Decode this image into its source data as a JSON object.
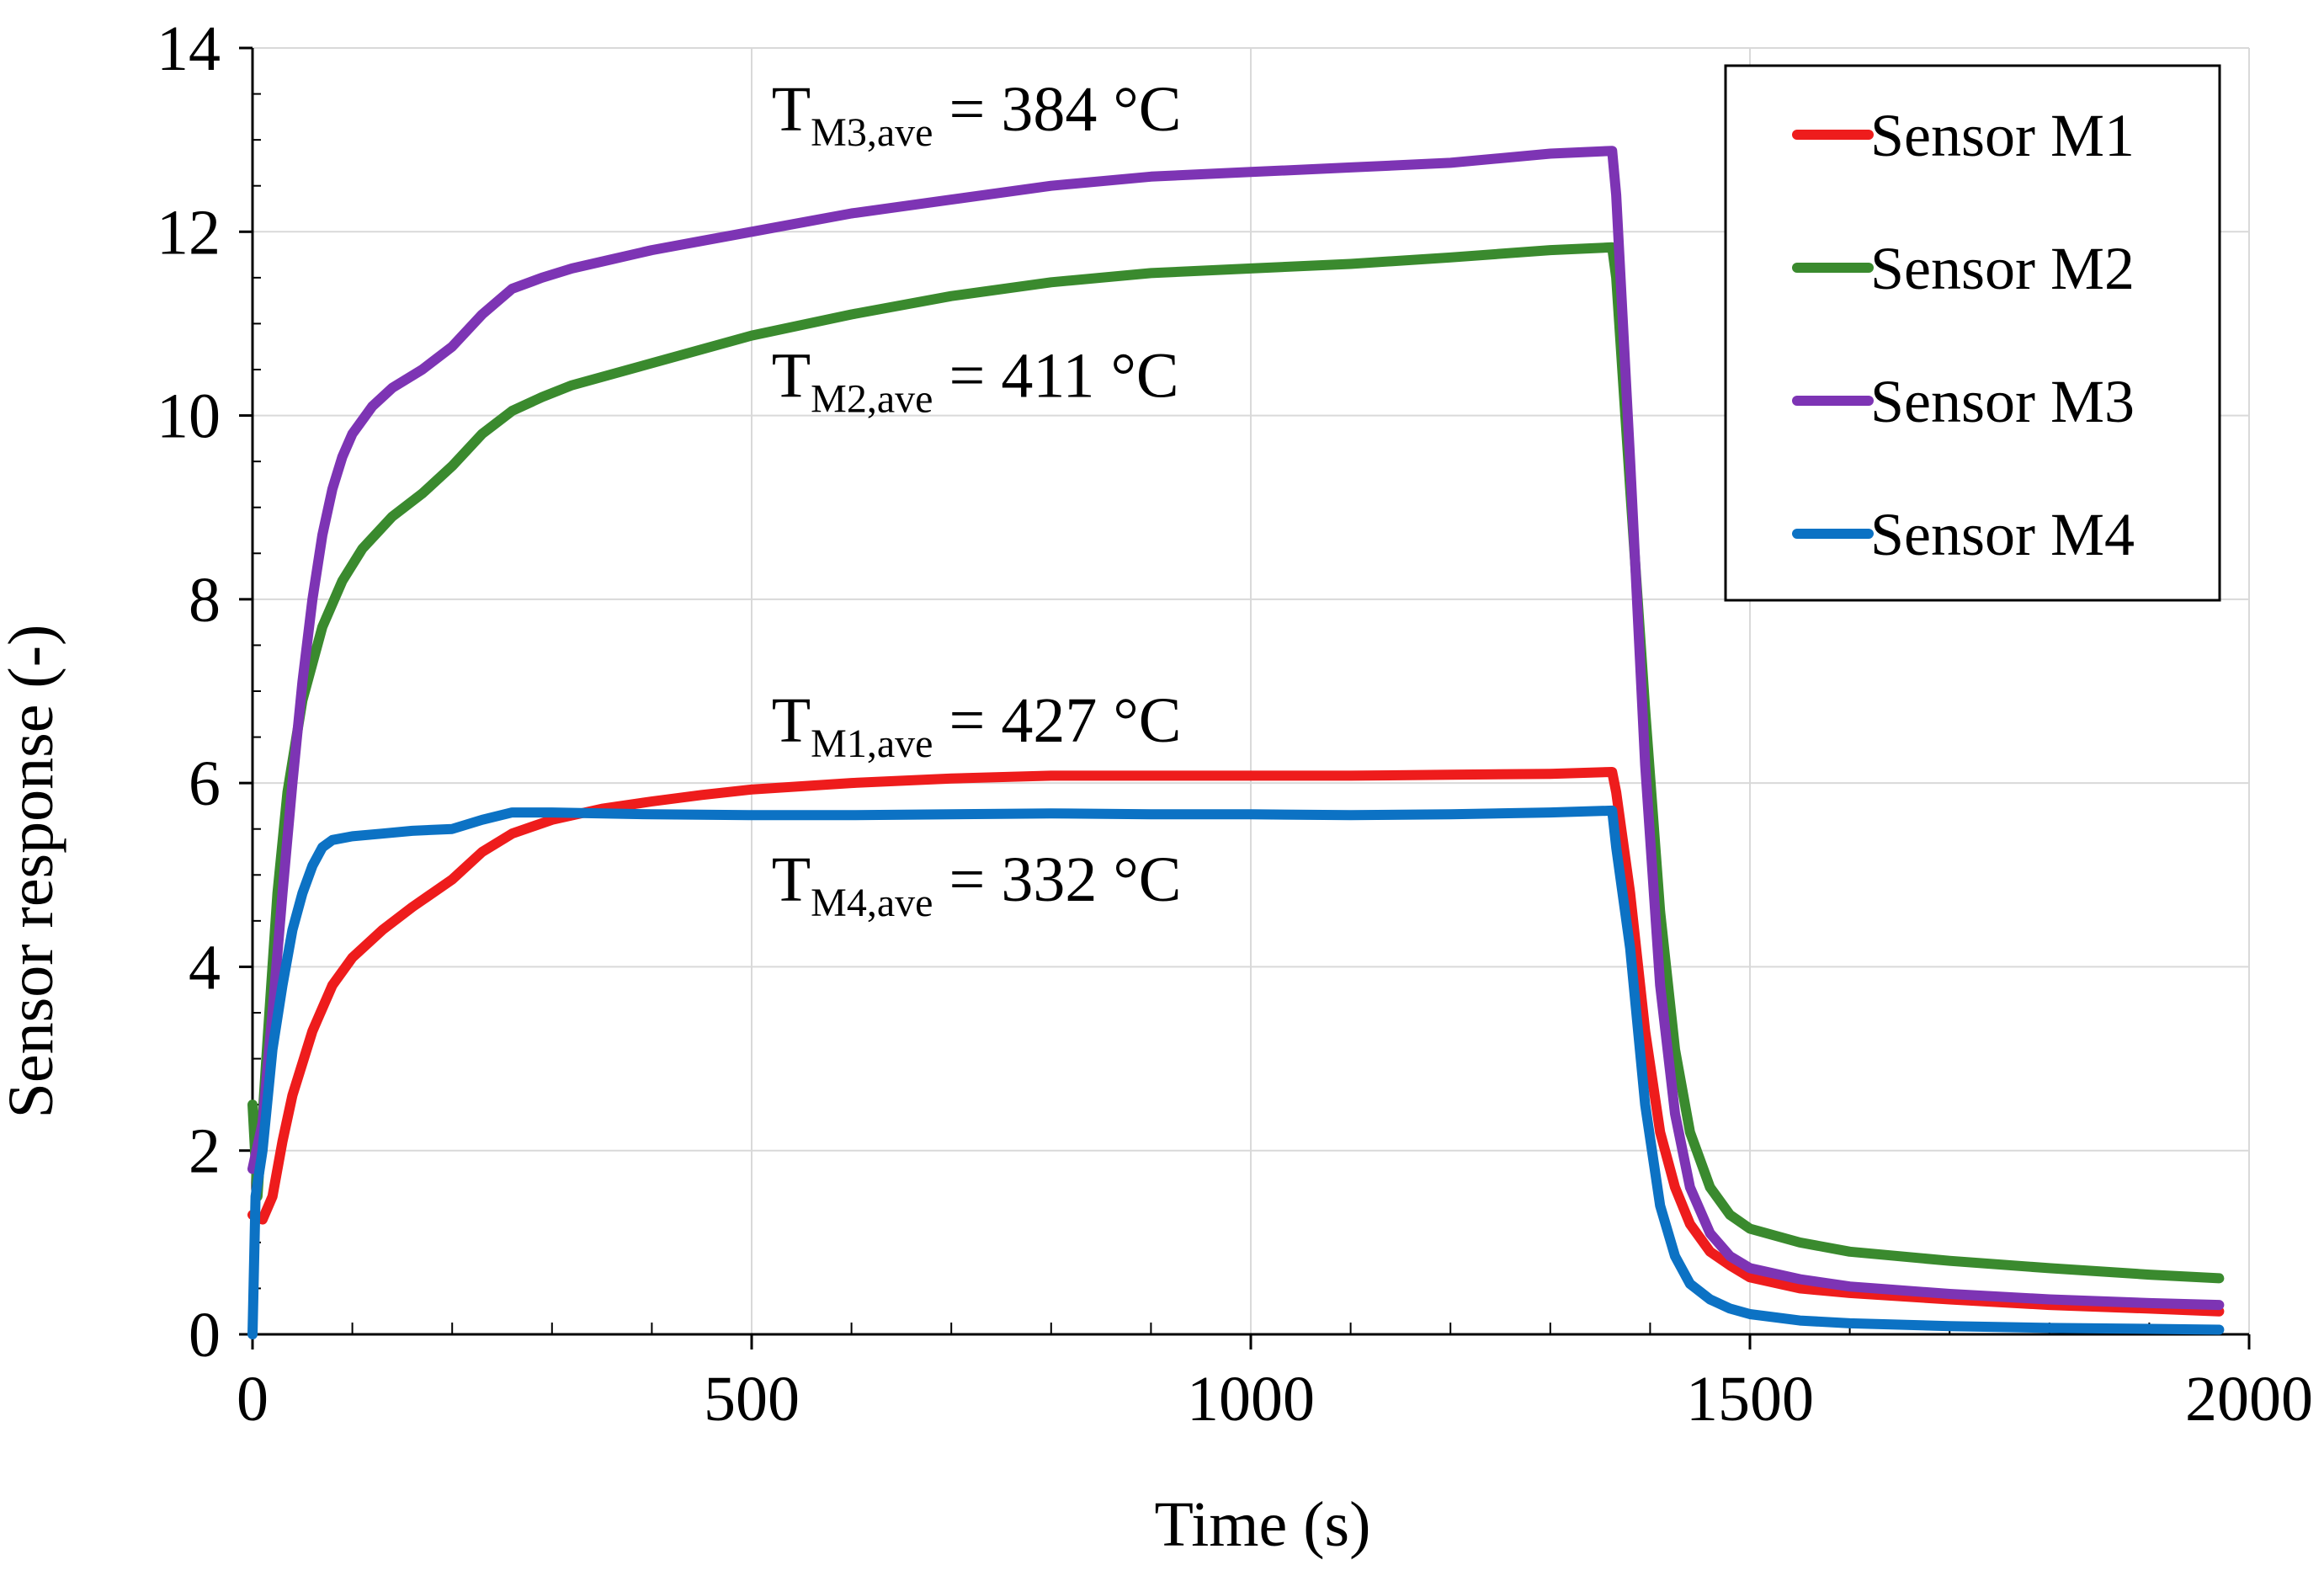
{
  "chart_data": {
    "type": "line",
    "xlabel": "Time (s)",
    "ylabel": "Sensor response (-)",
    "xlim": [
      0,
      2000
    ],
    "ylim": [
      0,
      14
    ],
    "xticks": [
      0,
      500,
      1000,
      1500,
      2000
    ],
    "yticks": [
      0,
      2,
      4,
      6,
      8,
      10,
      12,
      14
    ],
    "x_minor_step": 100,
    "grid": true,
    "legend_position": "top-right",
    "colors": {
      "Sensor M1": "#ee1c1c",
      "Sensor M2": "#3a8a2e",
      "Sensor M3": "#7d34b4",
      "Sensor M4": "#0c72c4"
    },
    "series": [
      {
        "name": "Sensor M1",
        "points": [
          [
            0,
            1.3
          ],
          [
            10,
            1.25
          ],
          [
            20,
            1.5
          ],
          [
            30,
            2.1
          ],
          [
            40,
            2.6
          ],
          [
            60,
            3.3
          ],
          [
            80,
            3.8
          ],
          [
            100,
            4.1
          ],
          [
            130,
            4.4
          ],
          [
            160,
            4.65
          ],
          [
            200,
            4.95
          ],
          [
            230,
            5.25
          ],
          [
            260,
            5.45
          ],
          [
            300,
            5.6
          ],
          [
            350,
            5.72
          ],
          [
            400,
            5.8
          ],
          [
            450,
            5.87
          ],
          [
            500,
            5.93
          ],
          [
            600,
            6.0
          ],
          [
            700,
            6.05
          ],
          [
            800,
            6.08
          ],
          [
            900,
            6.08
          ],
          [
            1000,
            6.08
          ],
          [
            1100,
            6.08
          ],
          [
            1200,
            6.09
          ],
          [
            1300,
            6.1
          ],
          [
            1362,
            6.12
          ],
          [
            1366,
            5.9
          ],
          [
            1380,
            4.8
          ],
          [
            1395,
            3.3
          ],
          [
            1410,
            2.2
          ],
          [
            1425,
            1.6
          ],
          [
            1440,
            1.2
          ],
          [
            1460,
            0.9
          ],
          [
            1480,
            0.75
          ],
          [
            1500,
            0.62
          ],
          [
            1550,
            0.5
          ],
          [
            1600,
            0.45
          ],
          [
            1700,
            0.38
          ],
          [
            1800,
            0.32
          ],
          [
            1900,
            0.28
          ],
          [
            1970,
            0.25
          ]
        ]
      },
      {
        "name": "Sensor M2",
        "points": [
          [
            0,
            2.5
          ],
          [
            5,
            1.5
          ],
          [
            15,
            3.2
          ],
          [
            25,
            4.8
          ],
          [
            35,
            5.9
          ],
          [
            50,
            6.9
          ],
          [
            70,
            7.7
          ],
          [
            90,
            8.2
          ],
          [
            110,
            8.55
          ],
          [
            140,
            8.9
          ],
          [
            170,
            9.15
          ],
          [
            200,
            9.45
          ],
          [
            230,
            9.8
          ],
          [
            260,
            10.05
          ],
          [
            290,
            10.2
          ],
          [
            320,
            10.33
          ],
          [
            360,
            10.45
          ],
          [
            400,
            10.57
          ],
          [
            450,
            10.72
          ],
          [
            500,
            10.87
          ],
          [
            600,
            11.1
          ],
          [
            700,
            11.3
          ],
          [
            800,
            11.45
          ],
          [
            900,
            11.55
          ],
          [
            1000,
            11.6
          ],
          [
            1100,
            11.65
          ],
          [
            1200,
            11.72
          ],
          [
            1300,
            11.8
          ],
          [
            1362,
            11.83
          ],
          [
            1366,
            11.5
          ],
          [
            1380,
            9.2
          ],
          [
            1395,
            6.8
          ],
          [
            1410,
            4.6
          ],
          [
            1425,
            3.1
          ],
          [
            1440,
            2.2
          ],
          [
            1460,
            1.6
          ],
          [
            1480,
            1.3
          ],
          [
            1500,
            1.15
          ],
          [
            1550,
            1.0
          ],
          [
            1600,
            0.9
          ],
          [
            1700,
            0.8
          ],
          [
            1800,
            0.72
          ],
          [
            1900,
            0.65
          ],
          [
            1970,
            0.61
          ]
        ]
      },
      {
        "name": "Sensor M3",
        "points": [
          [
            0,
            1.8
          ],
          [
            10,
            2.3
          ],
          [
            20,
            3.5
          ],
          [
            30,
            4.8
          ],
          [
            40,
            6.0
          ],
          [
            50,
            7.1
          ],
          [
            60,
            8.0
          ],
          [
            70,
            8.7
          ],
          [
            80,
            9.2
          ],
          [
            90,
            9.55
          ],
          [
            100,
            9.8
          ],
          [
            120,
            10.1
          ],
          [
            140,
            10.3
          ],
          [
            170,
            10.5
          ],
          [
            200,
            10.75
          ],
          [
            230,
            11.1
          ],
          [
            260,
            11.38
          ],
          [
            290,
            11.5
          ],
          [
            320,
            11.6
          ],
          [
            360,
            11.7
          ],
          [
            400,
            11.8
          ],
          [
            450,
            11.9
          ],
          [
            500,
            12.0
          ],
          [
            600,
            12.2
          ],
          [
            700,
            12.35
          ],
          [
            800,
            12.5
          ],
          [
            900,
            12.6
          ],
          [
            1000,
            12.65
          ],
          [
            1100,
            12.7
          ],
          [
            1200,
            12.75
          ],
          [
            1300,
            12.85
          ],
          [
            1362,
            12.88
          ],
          [
            1366,
            12.4
          ],
          [
            1380,
            9.5
          ],
          [
            1395,
            6.2
          ],
          [
            1410,
            3.8
          ],
          [
            1425,
            2.4
          ],
          [
            1440,
            1.6
          ],
          [
            1460,
            1.1
          ],
          [
            1480,
            0.85
          ],
          [
            1500,
            0.72
          ],
          [
            1550,
            0.6
          ],
          [
            1600,
            0.52
          ],
          [
            1700,
            0.44
          ],
          [
            1800,
            0.38
          ],
          [
            1900,
            0.34
          ],
          [
            1970,
            0.32
          ]
        ]
      },
      {
        "name": "Sensor M4",
        "points": [
          [
            0,
            0.0
          ],
          [
            3,
            1.5
          ],
          [
            10,
            2.0
          ],
          [
            20,
            3.1
          ],
          [
            30,
            3.8
          ],
          [
            40,
            4.4
          ],
          [
            50,
            4.8
          ],
          [
            60,
            5.1
          ],
          [
            70,
            5.3
          ],
          [
            80,
            5.38
          ],
          [
            100,
            5.42
          ],
          [
            130,
            5.45
          ],
          [
            160,
            5.48
          ],
          [
            200,
            5.5
          ],
          [
            230,
            5.6
          ],
          [
            260,
            5.68
          ],
          [
            300,
            5.68
          ],
          [
            400,
            5.66
          ],
          [
            500,
            5.65
          ],
          [
            600,
            5.65
          ],
          [
            700,
            5.66
          ],
          [
            800,
            5.67
          ],
          [
            900,
            5.66
          ],
          [
            1000,
            5.66
          ],
          [
            1100,
            5.65
          ],
          [
            1200,
            5.66
          ],
          [
            1300,
            5.68
          ],
          [
            1362,
            5.7
          ],
          [
            1366,
            5.3
          ],
          [
            1380,
            4.2
          ],
          [
            1395,
            2.5
          ],
          [
            1410,
            1.4
          ],
          [
            1425,
            0.85
          ],
          [
            1440,
            0.55
          ],
          [
            1460,
            0.38
          ],
          [
            1480,
            0.28
          ],
          [
            1500,
            0.22
          ],
          [
            1550,
            0.15
          ],
          [
            1600,
            0.12
          ],
          [
            1700,
            0.09
          ],
          [
            1800,
            0.07
          ],
          [
            1900,
            0.06
          ],
          [
            1970,
            0.05
          ]
        ]
      }
    ],
    "annotations": [
      {
        "main": "T",
        "sub": "M3,ave",
        "rest": " = 384 °C",
        "x": 520,
        "y": 13.1
      },
      {
        "main": "T",
        "sub": "M2,ave",
        "rest": " = 411 °C",
        "x": 520,
        "y": 10.2
      },
      {
        "main": "T",
        "sub": "M1,ave",
        "rest": " = 427 °C",
        "x": 520,
        "y": 6.45
      },
      {
        "main": "T",
        "sub": "M4,ave",
        "rest": " = 332 °C",
        "x": 520,
        "y": 4.72
      }
    ]
  }
}
